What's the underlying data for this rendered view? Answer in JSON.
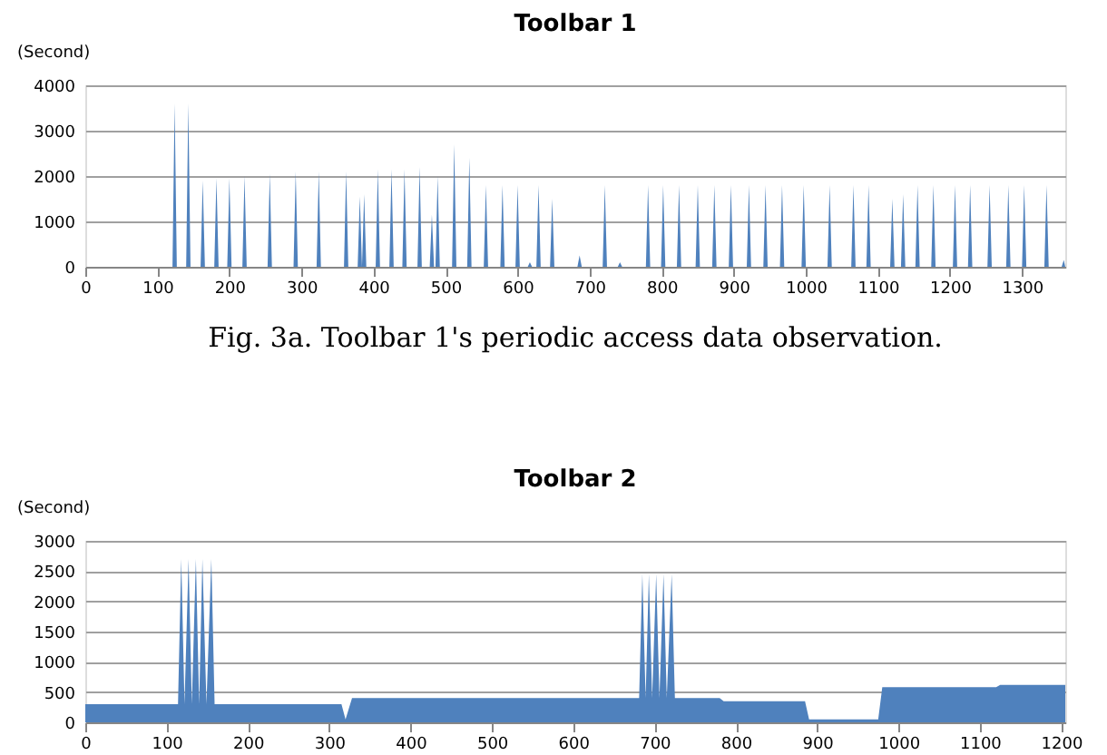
{
  "chart_data": [
    {
      "type": "area",
      "title": "Toolbar 1",
      "ylabel": "(Second)",
      "color": "#4f81bd",
      "grid": "y",
      "xlim": [
        0,
        1360
      ],
      "xticks": [
        0,
        100,
        200,
        300,
        400,
        500,
        600,
        700,
        800,
        900,
        1000,
        1100,
        1200,
        1300
      ],
      "ylim": [
        0,
        4000
      ],
      "yticks": [
        0,
        1000,
        2000,
        3000,
        4000
      ],
      "annotations": [
        "Fig. 3a. Toolbar 1's periodic access data observation."
      ],
      "x": [
        0,
        121,
        124,
        127,
        140,
        143,
        146,
        160,
        163,
        166,
        179,
        182,
        185,
        197,
        200,
        203,
        218,
        221,
        224,
        253,
        256,
        259,
        289,
        292,
        295,
        321,
        324,
        327,
        359,
        362,
        365,
        378,
        381,
        384,
        387,
        390,
        403,
        406,
        409,
        422,
        425,
        428,
        440,
        443,
        446,
        461,
        464,
        467,
        478,
        481,
        484,
        486,
        489,
        492,
        509,
        512,
        515,
        530,
        533,
        536,
        553,
        556,
        559,
        576,
        579,
        582,
        597,
        600,
        603,
        614,
        617,
        620,
        626,
        629,
        632,
        645,
        648,
        651,
        683,
        686,
        689,
        718,
        721,
        724,
        739,
        742,
        745,
        778,
        781,
        784,
        799,
        802,
        805,
        821,
        824,
        827,
        847,
        850,
        853,
        870,
        873,
        876,
        893,
        896,
        899,
        918,
        921,
        924,
        941,
        944,
        947,
        964,
        967,
        970,
        994,
        997,
        1000,
        1030,
        1033,
        1036,
        1063,
        1066,
        1069,
        1084,
        1087,
        1090,
        1117,
        1120,
        1123,
        1132,
        1135,
        1138,
        1152,
        1155,
        1158,
        1174,
        1177,
        1180,
        1204,
        1207,
        1210,
        1225,
        1228,
        1231,
        1252,
        1255,
        1258,
        1278,
        1281,
        1284,
        1300,
        1303,
        1306,
        1331,
        1334,
        1337,
        1355,
        1358,
        1360
      ],
      "values": [
        0,
        0,
        3600,
        0,
        0,
        3600,
        0,
        0,
        1900,
        0,
        0,
        1950,
        0,
        0,
        1950,
        0,
        0,
        2000,
        0,
        0,
        2050,
        0,
        0,
        2100,
        0,
        0,
        2100,
        0,
        0,
        2100,
        0,
        0,
        1550,
        0,
        1600,
        0,
        0,
        2150,
        0,
        0,
        2150,
        0,
        0,
        2150,
        0,
        0,
        2200,
        0,
        0,
        1150,
        0,
        0,
        2000,
        0,
        0,
        2700,
        0,
        0,
        2400,
        0,
        0,
        1800,
        0,
        0,
        1800,
        0,
        0,
        1800,
        0,
        0,
        100,
        0,
        0,
        1800,
        0,
        0,
        1500,
        0,
        0,
        250,
        0,
        0,
        1800,
        0,
        0,
        100,
        0,
        0,
        1800,
        0,
        0,
        1800,
        0,
        0,
        1800,
        0,
        0,
        1800,
        0,
        0,
        1800,
        0,
        0,
        1800,
        0,
        0,
        1800,
        0,
        0,
        1800,
        0,
        0,
        1800,
        0,
        0,
        1800,
        0,
        0,
        1800,
        0,
        0,
        1800,
        0,
        0,
        1800,
        0,
        0,
        1500,
        0,
        0,
        1600,
        0,
        0,
        1800,
        0,
        0,
        1800,
        0,
        0,
        1800,
        0,
        0,
        1800,
        0,
        0,
        1800,
        0,
        0,
        1800,
        0,
        0,
        1800,
        0,
        0,
        1800,
        0,
        0,
        150,
        0
      ]
    },
    {
      "type": "area",
      "title": "Toolbar 2",
      "ylabel": "(Second)",
      "color": "#4f81bd",
      "grid": "y",
      "xlim": [
        0,
        1205
      ],
      "xticks": [
        0,
        100,
        200,
        300,
        400,
        500,
        600,
        700,
        800,
        900,
        1000,
        1100,
        1200
      ],
      "ylim": [
        0,
        3000
      ],
      "yticks": [
        0,
        500,
        1000,
        1500,
        2000,
        2500,
        3000
      ],
      "x": [
        0,
        114,
        118,
        122,
        127,
        131,
        136,
        140,
        144,
        149,
        155,
        159,
        315,
        320,
        328,
        681,
        685,
        689,
        693,
        697,
        702,
        706,
        711,
        715,
        721,
        725,
        780,
        785,
        885,
        890,
        975,
        980,
        1120,
        1125,
        1205
      ],
      "values": [
        300,
        300,
        2700,
        300,
        2700,
        300,
        2700,
        300,
        2700,
        300,
        2700,
        300,
        300,
        50,
        400,
        400,
        2450,
        400,
        2450,
        400,
        2450,
        400,
        2450,
        400,
        2450,
        400,
        400,
        350,
        350,
        50,
        50,
        580,
        580,
        620,
        620
      ]
    }
  ]
}
